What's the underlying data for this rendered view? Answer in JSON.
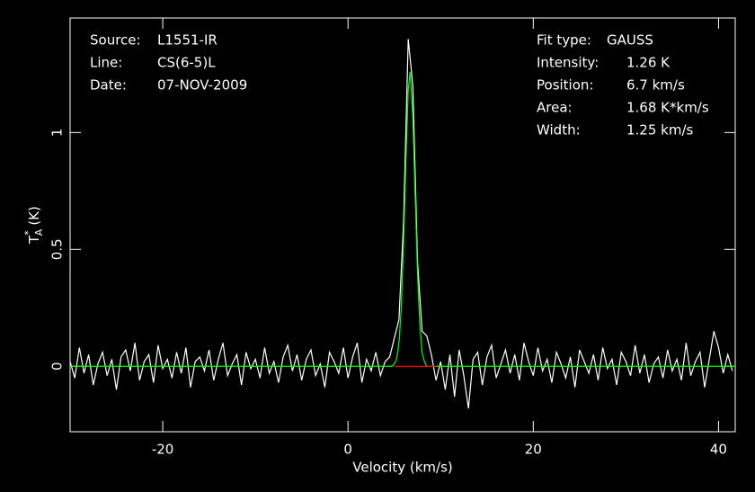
{
  "chart_data": {
    "type": "line",
    "xlabel": "Velocity (km/s)",
    "ylabel": {
      "main": "T",
      "sup": "*",
      "sub": "A",
      "unit": "(K)"
    },
    "xlim": [
      -30,
      41.8
    ],
    "ylim": [
      -0.28,
      1.49
    ],
    "xticks": [
      -20,
      0,
      20,
      40
    ],
    "yticks": [
      0,
      0.5,
      1
    ],
    "annotations_left": [
      {
        "label": "Source:",
        "value": "L1551-IR"
      },
      {
        "label": "Line:",
        "value": "CS(6-5)L"
      },
      {
        "label": "Date:",
        "value": "07-NOV-2009"
      }
    ],
    "annotations_right": [
      {
        "label": "Fit type:",
        "value": "GAUSS"
      },
      {
        "label": "Intensity:",
        "value": "1.26 K"
      },
      {
        "label": "Position:",
        "value": "6.7 km/s"
      },
      {
        "label": "Area:",
        "value": "1.68 K*km/s"
      },
      {
        "label": "Width:",
        "value": "1.25 km/s"
      }
    ],
    "series": [
      {
        "color": "#ffffff",
        "x": [
          -30,
          -29.5,
          -29,
          -28.5,
          -28,
          -27.5,
          -27,
          -26.5,
          -26,
          -25.5,
          -25,
          -24.5,
          -24,
          -23.5,
          -23,
          -22.5,
          -22,
          -21.5,
          -21,
          -20.5,
          -20,
          -19.5,
          -19,
          -18.5,
          -18,
          -17.5,
          -17,
          -16.5,
          -16,
          -15.5,
          -15,
          -14.5,
          -14,
          -13.5,
          -13,
          -12.5,
          -12,
          -11.5,
          -11,
          -10.5,
          -10,
          -9.5,
          -9,
          -8.5,
          -8,
          -7.5,
          -7,
          -6.5,
          -6,
          -5.5,
          -5,
          -4.5,
          -4,
          -3.5,
          -3,
          -2.5,
          -2,
          -1.5,
          -1,
          -0.5,
          0,
          0.5,
          1,
          1.5,
          2,
          2.5,
          3,
          3.5,
          4,
          4.5,
          5,
          5.5,
          6,
          6.5,
          7,
          7.5,
          8,
          8.5,
          9,
          9.5,
          10,
          10.5,
          11,
          11.5,
          12,
          12.5,
          13,
          13.5,
          14,
          14.5,
          15,
          15.5,
          16,
          16.5,
          17,
          17.5,
          18,
          18.5,
          19,
          19.5,
          20,
          20.5,
          21,
          21.5,
          22,
          22.5,
          23,
          23.5,
          24,
          24.5,
          25,
          25.5,
          26,
          26.5,
          27,
          27.5,
          28,
          28.5,
          29,
          29.5,
          30,
          30.5,
          31,
          31.5,
          32,
          32.5,
          33,
          33.5,
          34,
          34.5,
          35,
          35.5,
          36,
          36.5,
          37,
          37.5,
          38,
          38.5,
          39,
          39.5,
          40,
          40.5,
          41,
          41.5
        ],
        "values": [
          0.02,
          -0.05,
          0.08,
          -0.03,
          0.05,
          -0.08,
          0.01,
          0.06,
          -0.04,
          0.03,
          -0.1,
          0.04,
          0.07,
          -0.02,
          0.1,
          -0.06,
          0.02,
          0.05,
          -0.07,
          0.09,
          -0.01,
          0.03,
          -0.05,
          0.06,
          -0.03,
          0.08,
          -0.09,
          0.02,
          0.04,
          -0.02,
          0.07,
          -0.06,
          0.03,
          0.1,
          -0.04,
          0.01,
          0.05,
          -0.08,
          0.06,
          -0.01,
          0.03,
          -0.05,
          0.08,
          -0.03,
          0.02,
          -0.07,
          0.04,
          0.09,
          -0.02,
          0.05,
          -0.06,
          0.03,
          0.07,
          -0.04,
          0.01,
          -0.09,
          0.06,
          0.02,
          -0.03,
          0.08,
          -0.05,
          0.04,
          0.1,
          -0.07,
          0.03,
          -0.02,
          0.06,
          -0.04,
          0.02,
          0.04,
          0.12,
          0.2,
          0.62,
          1.4,
          1.2,
          0.45,
          0.15,
          0.13,
          0.05,
          -0.06,
          0.02,
          -0.1,
          0.05,
          -0.13,
          0.07,
          -0.04,
          -0.18,
          0.03,
          0.06,
          -0.08,
          0.04,
          0.09,
          -0.05,
          0.01,
          0.07,
          -0.03,
          0.05,
          -0.06,
          0.1,
          0.02,
          -0.04,
          0.08,
          -0.02,
          0.03,
          -0.07,
          0.06,
          0.01,
          -0.05,
          0.04,
          -0.09,
          0.07,
          0.02,
          -0.03,
          0.05,
          -0.06,
          0.08,
          -0.01,
          0.03,
          -0.08,
          0.06,
          0.02,
          -0.04,
          0.09,
          -0.03,
          0.05,
          -0.07,
          0.01,
          0.04,
          -0.05,
          0.07,
          -0.02,
          0.03,
          -0.06,
          0.1,
          -0.04,
          0.02,
          0.06,
          -0.09,
          0.03,
          0.15,
          0.08,
          -0.03,
          0.05,
          -0.02
        ]
      },
      {
        "color": "#00ff00",
        "x": [
          -30,
          4.5,
          4.75,
          5,
          5.25,
          5.5,
          5.75,
          6,
          6.25,
          6.5,
          6.7,
          7,
          7.25,
          7.5,
          7.75,
          8,
          8.25,
          8.5,
          9,
          41.8
        ],
        "values": [
          0,
          0,
          0,
          0.01,
          0.03,
          0.1,
          0.25,
          0.53,
          0.88,
          1.18,
          1.26,
          1.07,
          0.74,
          0.4,
          0.18,
          0.06,
          0.02,
          0,
          0,
          0
        ]
      },
      {
        "color": "#ff0000",
        "x": [
          5,
          9.5
        ],
        "values": [
          0,
          0
        ]
      }
    ]
  }
}
